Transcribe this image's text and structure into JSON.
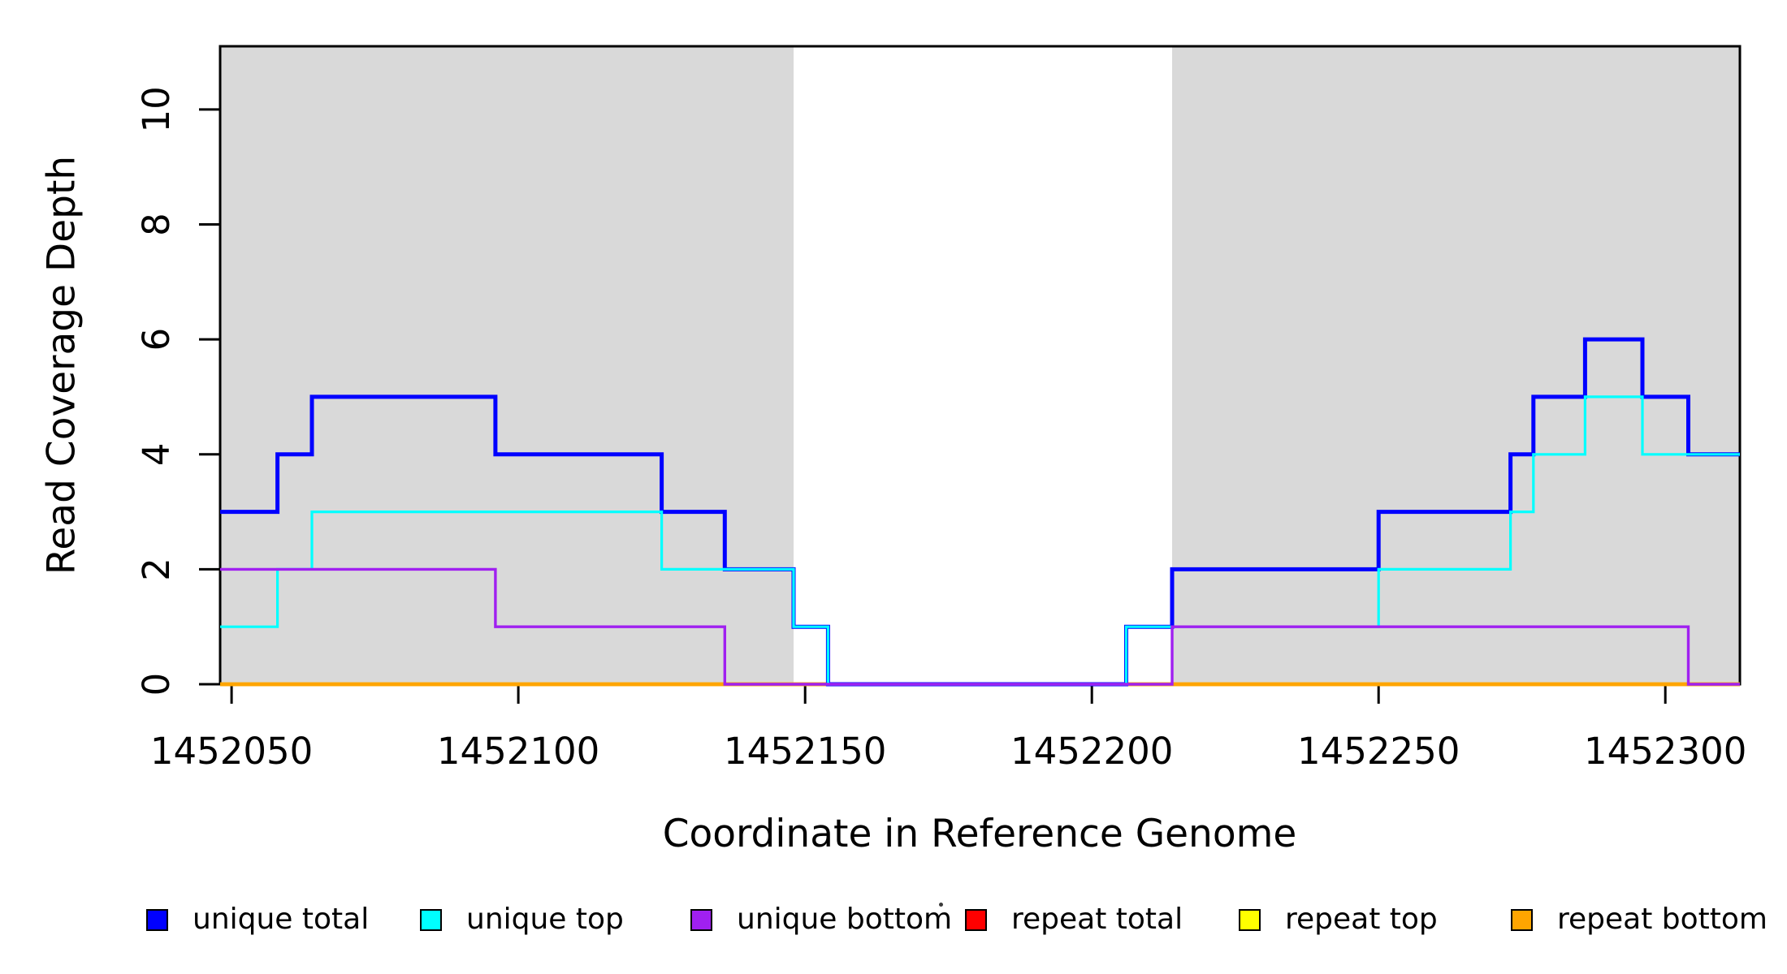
{
  "chart_data": {
    "type": "line",
    "subtype": "step",
    "title": "",
    "xlabel": "Coordinate in Reference Genome",
    "ylabel": "Read Coverage Depth",
    "xlim": [
      1452048,
      1452313
    ],
    "ylim": [
      0,
      11.1
    ],
    "x_ticks": [
      1452050,
      1452100,
      1452150,
      1452200,
      1452250,
      1452300
    ],
    "y_ticks": [
      0,
      2,
      4,
      6,
      8,
      10
    ],
    "grid": false,
    "legend_position": "bottom",
    "shaded_regions": [
      {
        "x0": 1452048,
        "x1": 1452148,
        "color": "#D9D9D9"
      },
      {
        "x0": 1452214,
        "x1": 1452313,
        "color": "#D9D9D9"
      }
    ],
    "series": [
      {
        "name": "repeat total",
        "color": "#FF0000",
        "line_width": 4.5,
        "points": [
          [
            1452048,
            0
          ],
          [
            1452313,
            0
          ]
        ]
      },
      {
        "name": "repeat top",
        "color": "#FFFF00",
        "line_width": 4.5,
        "points": [
          [
            1452048,
            0
          ],
          [
            1452313,
            0
          ]
        ]
      },
      {
        "name": "repeat bottom",
        "color": "#FFA500",
        "line_width": 4.5,
        "points": [
          [
            1452048,
            0
          ],
          [
            1452313,
            0
          ]
        ]
      },
      {
        "name": "unique total",
        "color": "#0000FF",
        "line_width": 5,
        "points": [
          [
            1452048,
            3
          ],
          [
            1452058,
            4
          ],
          [
            1452064,
            5
          ],
          [
            1452096,
            4
          ],
          [
            1452125,
            3
          ],
          [
            1452136,
            2
          ],
          [
            1452148,
            1
          ],
          [
            1452154,
            0
          ],
          [
            1452206,
            1
          ],
          [
            1452214,
            2
          ],
          [
            1452250,
            3
          ],
          [
            1452273,
            4
          ],
          [
            1452277,
            5
          ],
          [
            1452286,
            6
          ],
          [
            1452296,
            5
          ],
          [
            1452304,
            4
          ],
          [
            1452313,
            4
          ]
        ]
      },
      {
        "name": "unique top",
        "color": "#00FFFF",
        "line_width": 3.2,
        "points": [
          [
            1452048,
            1
          ],
          [
            1452058,
            2
          ],
          [
            1452064,
            3
          ],
          [
            1452125,
            2
          ],
          [
            1452148,
            1
          ],
          [
            1452154,
            0
          ],
          [
            1452206,
            1
          ],
          [
            1452250,
            2
          ],
          [
            1452273,
            3
          ],
          [
            1452277,
            4
          ],
          [
            1452286,
            5
          ],
          [
            1452296,
            4
          ],
          [
            1452313,
            4
          ]
        ]
      },
      {
        "name": "unique bottom",
        "color": "#A020F0",
        "line_width": 3.4,
        "points": [
          [
            1452048,
            2
          ],
          [
            1452096,
            1
          ],
          [
            1452136,
            0
          ],
          [
            1452214,
            1
          ],
          [
            1452304,
            0
          ],
          [
            1452313,
            0
          ]
        ]
      }
    ]
  },
  "legend": {
    "items": [
      {
        "label": "unique total",
        "color": "#0000FF"
      },
      {
        "label": "unique top",
        "color": "#00FFFF"
      },
      {
        "label": "unique bottom",
        "color": "#A020F0"
      },
      {
        "label": "repeat total",
        "color": "#FF0000"
      },
      {
        "label": "repeat top",
        "color": "#FFFF00"
      },
      {
        "label": "repeat bottom",
        "color": "#FFA500"
      }
    ]
  }
}
